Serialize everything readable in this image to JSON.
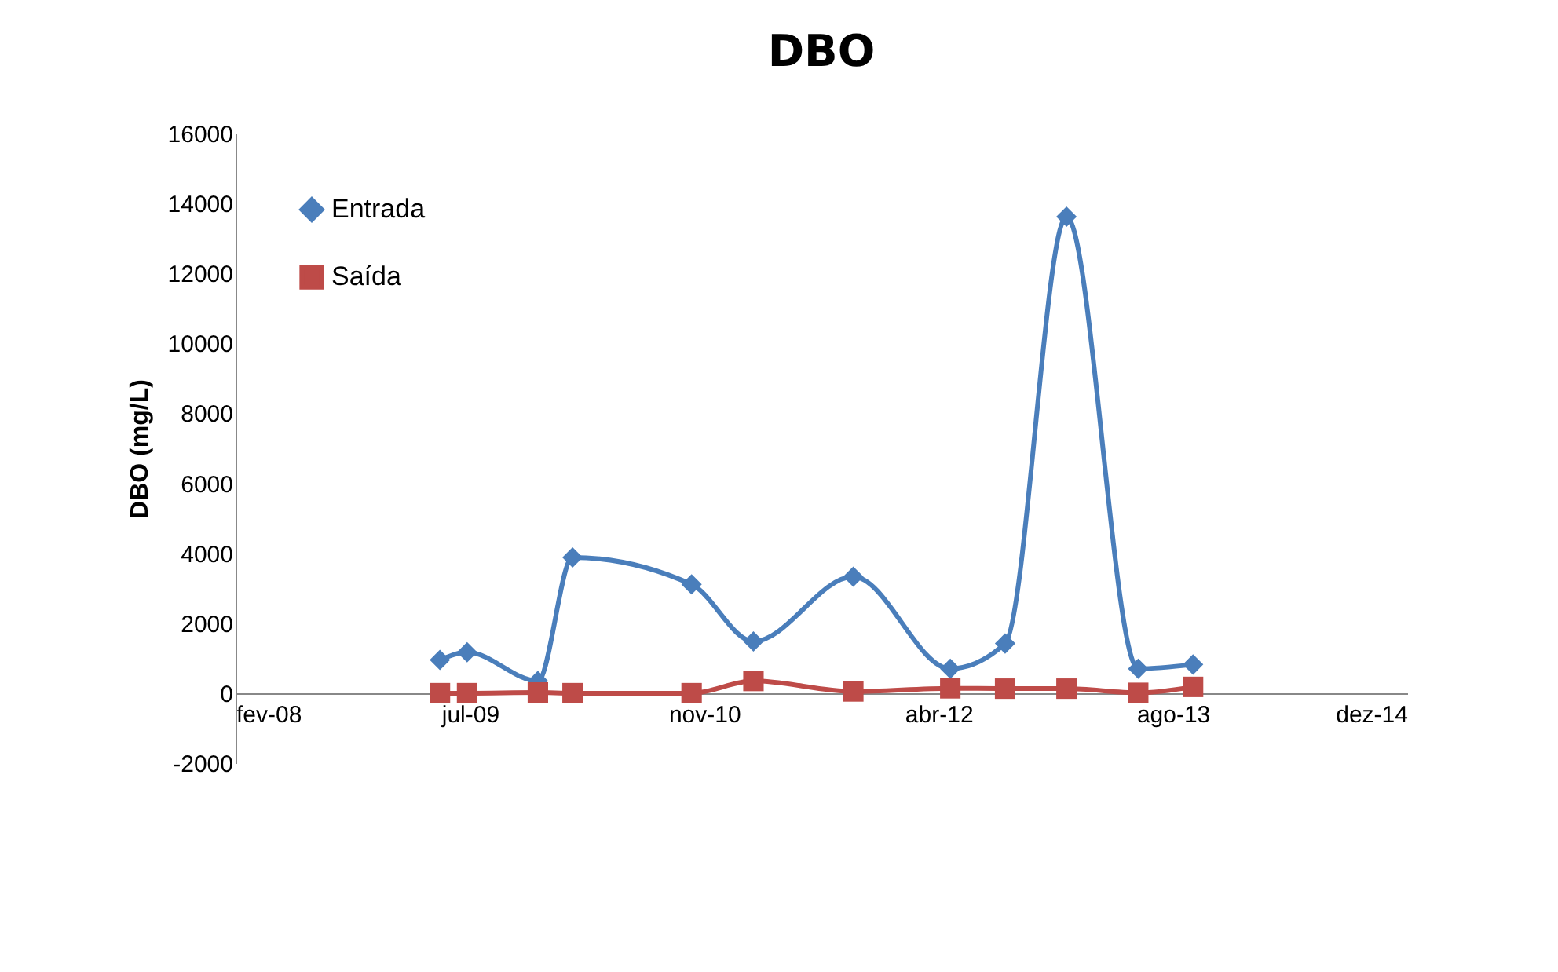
{
  "chart_data": {
    "type": "line",
    "title": "DBO",
    "ylabel": "DBO (mg/L)",
    "x": [
      "2009-05-06",
      "2009-07-03",
      "2009-12-01",
      "2010-02-13",
      "2010-10-25",
      "2011-03-06",
      "2011-10-05",
      "2012-04-29",
      "2012-08-24",
      "2013-01-02",
      "2013-06-04",
      "2013-09-29"
    ],
    "series": [
      {
        "name": "Entrada",
        "color": "#4a7ebb",
        "marker": "diamond",
        "values": [
          950,
          1170,
          350,
          3880,
          3110,
          1480,
          3330,
          700,
          1420,
          13620,
          700,
          820
        ]
      },
      {
        "name": "Saída",
        "color": "#be4b48",
        "marker": "square",
        "values": [
          0,
          0,
          20,
          0,
          0,
          350,
          50,
          140,
          130,
          130,
          10,
          180
        ]
      }
    ],
    "xlim": [
      "2008-02-25",
      "2014-12-30"
    ],
    "xticks": [
      {
        "value": "2008-02-25",
        "label": "fev-08"
      },
      {
        "value": "2009-07-09",
        "label": "jul-09"
      },
      {
        "value": "2010-11-21",
        "label": "nov-10"
      },
      {
        "value": "2012-04-04",
        "label": "abr-12"
      },
      {
        "value": "2013-08-17",
        "label": "ago-13"
      },
      {
        "value": "2014-12-30",
        "label": "dez-14"
      }
    ],
    "ylim": [
      -2000,
      16000
    ],
    "yticks": [
      -2000,
      0,
      2000,
      4000,
      6000,
      8000,
      10000,
      12000,
      14000,
      16000
    ],
    "legend": "top left",
    "grid": false
  }
}
